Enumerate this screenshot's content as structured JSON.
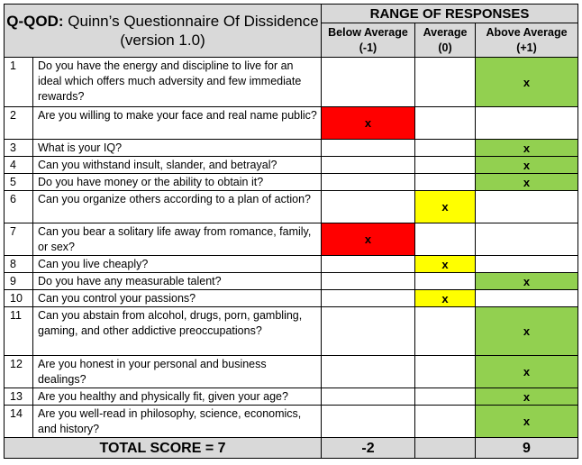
{
  "header": {
    "title_bold": "Q-QOD:",
    "title_rest": " Quinn’s Questionnaire Of Dissidence (version 1.0)",
    "range_label": "RANGE OF RESPONSES",
    "columns": [
      {
        "label": "Below Average",
        "value": "(-1)"
      },
      {
        "label": "Average",
        "value": "(0)"
      },
      {
        "label": "Above Average",
        "value": "(+1)"
      }
    ]
  },
  "mark_symbol": "x",
  "colors": {
    "below": "#ff0000",
    "average": "#ffff00",
    "above": "#92d050",
    "header_bg": "#d9d9d9"
  },
  "questions": [
    {
      "num": "1",
      "text": "Do you have the energy and discipline to live for an ideal which offers much adversity and few immediate rewards?",
      "response": "above"
    },
    {
      "num": "2",
      "text": "Are you willing to make your face and real name public?",
      "response": "below"
    },
    {
      "num": "3",
      "text": "What is your IQ?",
      "response": "above"
    },
    {
      "num": "4",
      "text": "Can you withstand insult, slander, and betrayal?",
      "response": "above"
    },
    {
      "num": "5",
      "text": "Do you have money or the ability to obtain it?",
      "response": "above"
    },
    {
      "num": "6",
      "text": "Can you organize others according to a plan of action?",
      "response": "average"
    },
    {
      "num": "7",
      "text": "Can you bear a solitary life away from romance, family, or sex?",
      "response": "below"
    },
    {
      "num": "8",
      "text": "Can you live cheaply?",
      "response": "average"
    },
    {
      "num": "9",
      "text": "Do you have any measurable talent?",
      "response": "above"
    },
    {
      "num": "10",
      "text": "Can you control your passions?",
      "response": "average"
    },
    {
      "num": "11",
      "text": "Can you abstain from alcohol, drugs, porn, gambling, gaming, and other addictive preoccupations?",
      "response": "above"
    },
    {
      "num": "12",
      "text": "Are you honest in your personal and business dealings?",
      "response": "above"
    },
    {
      "num": "13",
      "text": "Are you healthy and physically fit, given your age?",
      "response": "above"
    },
    {
      "num": "14",
      "text": "Are you well-read in philosophy, science, economics, and history?",
      "response": "above"
    }
  ],
  "totals": {
    "label": "TOTAL SCORE = 7",
    "below": "-2",
    "average": "",
    "above": "9"
  }
}
